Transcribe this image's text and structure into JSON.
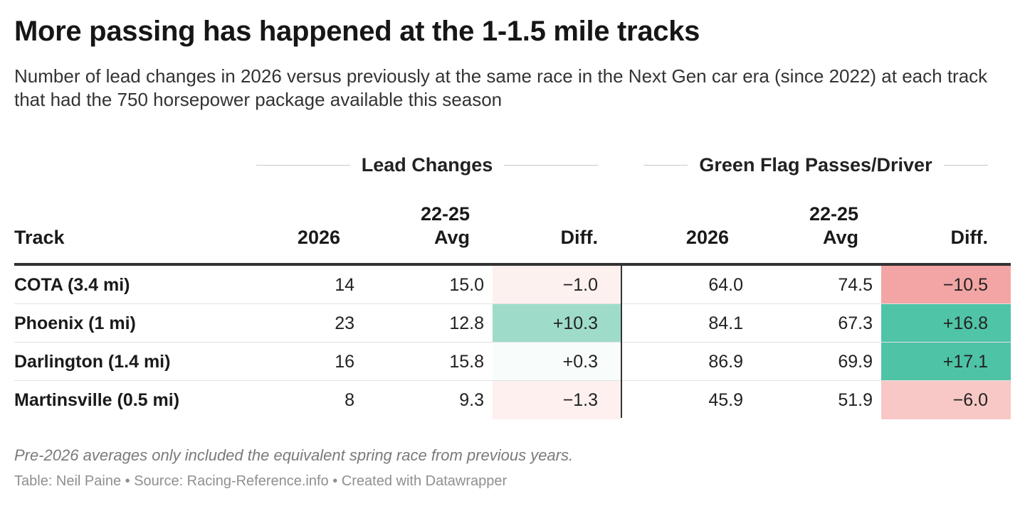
{
  "chart_data": {
    "type": "table",
    "title": "More passing has happened at the 1-1.5 mile tracks",
    "subtitle": "Number of lead changes in 2026 versus previously at the same race in the Next Gen car era (since 2022) at each track that had the 750 horsepower package available this season",
    "column_groups": [
      "Lead Changes",
      "Green Flag Passes/Driver"
    ],
    "columns": {
      "track": "Track",
      "lc_2026": "2026",
      "lc_avg_line1": "22-25",
      "lc_avg_line2": "Avg",
      "lc_diff": "Diff.",
      "gfp_2026": "2026",
      "gfp_avg_line1": "22-25",
      "gfp_avg_line2": "Avg",
      "gfp_diff": "Diff."
    },
    "rows": [
      {
        "track": "COTA (3.4 mi)",
        "lc_2026": "14",
        "lc_avg": "15.0",
        "lc_diff": "−1.0",
        "gfp_2026": "64.0",
        "gfp_avg": "74.5",
        "gfp_diff": "−10.5",
        "lc_diff_color": "#fdf1ef",
        "gfp_diff_color": "#f2a5a4"
      },
      {
        "track": "Phoenix (1 mi)",
        "lc_2026": "23",
        "lc_avg": "12.8",
        "lc_diff": "+10.3",
        "gfp_2026": "84.1",
        "gfp_avg": "67.3",
        "gfp_diff": "+16.8",
        "lc_diff_color": "#9edcc9",
        "gfp_diff_color": "#50c4a7"
      },
      {
        "track": "Darlington (1.4 mi)",
        "lc_2026": "16",
        "lc_avg": "15.8",
        "lc_diff": "+0.3",
        "gfp_2026": "86.9",
        "gfp_avg": "69.9",
        "gfp_diff": "+17.1",
        "lc_diff_color": "#f8fcfb",
        "gfp_diff_color": "#4ec3a6"
      },
      {
        "track": "Martinsville (0.5 mi)",
        "lc_2026": "8",
        "lc_avg": "9.3",
        "lc_diff": "−1.3",
        "gfp_2026": "45.9",
        "gfp_avg": "51.9",
        "gfp_diff": "−6.0",
        "lc_diff_color": "#fdf0ee",
        "gfp_diff_color": "#f7c8c5"
      }
    ],
    "footnote": "Pre-2026 averages only included the equivalent spring race from previous years.",
    "credits": "Table: Neil Paine • Source: Racing-Reference.info • Created with Datawrapper"
  }
}
